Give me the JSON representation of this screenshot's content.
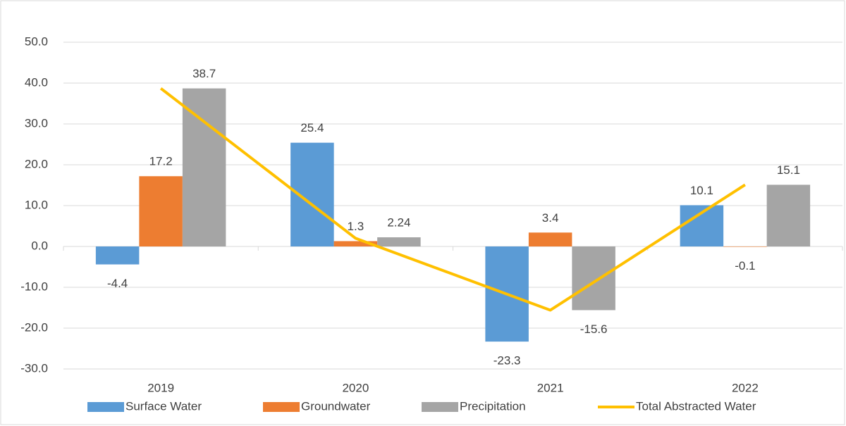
{
  "chart_data": {
    "type": "bar",
    "categories": [
      "2019",
      "2020",
      "2021",
      "2022"
    ],
    "series": [
      {
        "name": "Surface Water",
        "color": "#5b9bd5",
        "values": [
          -4.4,
          25.4,
          -23.3,
          10.1
        ]
      },
      {
        "name": "Groundwater",
        "color": "#ed7d31",
        "values": [
          17.2,
          1.3,
          3.4,
          -0.1
        ]
      },
      {
        "name": "Precipitation",
        "color": "#a5a5a5",
        "values": [
          38.7,
          2.24,
          -15.6,
          15.1
        ]
      },
      {
        "name": "Total Abstracted Water",
        "color": "#ffc000",
        "type": "line",
        "values": [
          38.7,
          2.0,
          -15.6,
          15.1
        ]
      }
    ],
    "ylim": [
      -30,
      50
    ],
    "yticks": [
      {
        "value": -30,
        "label": "-30.0"
      },
      {
        "value": -20,
        "label": "-20.0"
      },
      {
        "value": -10,
        "label": "-10.0"
      },
      {
        "value": 0,
        "label": "0.0"
      },
      {
        "value": 10,
        "label": "10.0"
      },
      {
        "value": 20,
        "label": "20.0"
      },
      {
        "value": 30,
        "label": "30.0"
      },
      {
        "value": 40,
        "label": "40.0"
      },
      {
        "value": 50,
        "label": "50.0"
      }
    ],
    "grid": true,
    "legend": "bottom"
  }
}
